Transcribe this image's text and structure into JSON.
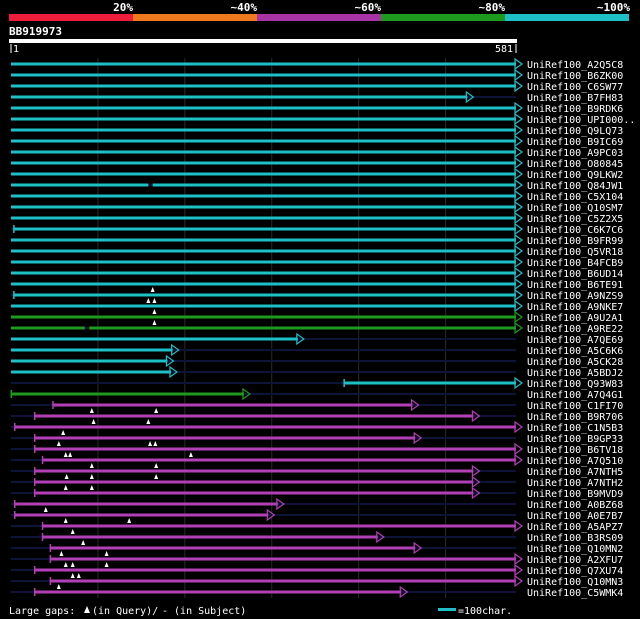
{
  "legend": {
    "ticks": [
      "20%",
      "~40%",
      "~60%",
      "~80%",
      "~100%"
    ],
    "colors": [
      "#ef1d3c",
      "#ef7a1e",
      "#a833a4",
      "#1e9a1e",
      "#1ec0c8"
    ]
  },
  "query": {
    "name": "BB919973",
    "start": "1",
    "end": "581",
    "length": 581
  },
  "colors": {
    "cyan": "#1ec0c8",
    "green": "#1e9a1e",
    "magenta": "#b23fb6",
    "dim": "#0c1438",
    "grid": "#2a2a2a"
  },
  "hits": [
    {
      "label": "UniRef100_A2Q5C8",
      "color": "cyan",
      "segs": [
        [
          0,
          581
        ]
      ],
      "arrow": true,
      "start_tick": false,
      "gaps": []
    },
    {
      "label": "UniRef100_B6ZK00",
      "color": "cyan",
      "segs": [
        [
          0,
          581
        ]
      ],
      "arrow": true,
      "start_tick": false,
      "gaps": []
    },
    {
      "label": "UniRef100_C6SW77",
      "color": "cyan",
      "segs": [
        [
          0,
          581
        ]
      ],
      "arrow": true,
      "start_tick": false,
      "gaps": []
    },
    {
      "label": "UniRef100_B7FH83",
      "color": "cyan",
      "segs": [
        [
          0,
          525
        ]
      ],
      "arrow": true,
      "start_tick": false,
      "gaps": []
    },
    {
      "label": "UniRef100_B9RDK6",
      "color": "cyan",
      "segs": [
        [
          0,
          581
        ]
      ],
      "arrow": true,
      "start_tick": false,
      "gaps": []
    },
    {
      "label": "UniRef100_UPI000..",
      "color": "cyan",
      "segs": [
        [
          0,
          581
        ]
      ],
      "arrow": true,
      "start_tick": false,
      "gaps": []
    },
    {
      "label": "UniRef100_Q9LQ73",
      "color": "cyan",
      "segs": [
        [
          0,
          581
        ]
      ],
      "arrow": true,
      "start_tick": false,
      "gaps": []
    },
    {
      "label": "UniRef100_B9IC69",
      "color": "cyan",
      "segs": [
        [
          0,
          581
        ]
      ],
      "arrow": true,
      "start_tick": false,
      "gaps": []
    },
    {
      "label": "UniRef100_A9PC03",
      "color": "cyan",
      "segs": [
        [
          0,
          581
        ]
      ],
      "arrow": true,
      "start_tick": false,
      "gaps": []
    },
    {
      "label": "UniRef100_O80845",
      "color": "cyan",
      "segs": [
        [
          0,
          581
        ]
      ],
      "arrow": true,
      "start_tick": false,
      "gaps": []
    },
    {
      "label": "UniRef100_Q9LKW2",
      "color": "cyan",
      "segs": [
        [
          0,
          581
        ]
      ],
      "arrow": true,
      "start_tick": false,
      "gaps": []
    },
    {
      "label": "UniRef100_Q84JW1",
      "color": "cyan",
      "segs": [
        [
          0,
          158
        ],
        [
          163,
          581
        ]
      ],
      "arrow": true,
      "start_tick": false,
      "gaps": []
    },
    {
      "label": "UniRef100_C5X104",
      "color": "cyan",
      "segs": [
        [
          0,
          581
        ]
      ],
      "arrow": true,
      "start_tick": false,
      "gaps": []
    },
    {
      "label": "UniRef100_Q10SM7",
      "color": "cyan",
      "segs": [
        [
          0,
          581
        ]
      ],
      "arrow": true,
      "start_tick": false,
      "gaps": []
    },
    {
      "label": "UniRef100_C5Z2X5",
      "color": "cyan",
      "segs": [
        [
          0,
          581
        ]
      ],
      "arrow": true,
      "start_tick": false,
      "gaps": []
    },
    {
      "label": "UniRef100_C6K7C6",
      "color": "cyan",
      "segs": [
        [
          3,
          581
        ]
      ],
      "arrow": true,
      "start_tick": true,
      "gaps": []
    },
    {
      "label": "UniRef100_B9FR99",
      "color": "cyan",
      "segs": [
        [
          0,
          581
        ]
      ],
      "arrow": true,
      "start_tick": false,
      "gaps": []
    },
    {
      "label": "UniRef100_Q5VR18",
      "color": "cyan",
      "segs": [
        [
          0,
          581
        ]
      ],
      "arrow": true,
      "start_tick": false,
      "gaps": []
    },
    {
      "label": "UniRef100_B4FCB9",
      "color": "cyan",
      "segs": [
        [
          0,
          581
        ]
      ],
      "arrow": true,
      "start_tick": false,
      "gaps": []
    },
    {
      "label": "UniRef100_B6UD14",
      "color": "cyan",
      "segs": [
        [
          0,
          581
        ]
      ],
      "arrow": true,
      "start_tick": false,
      "gaps": []
    },
    {
      "label": "UniRef100_B6TE91",
      "color": "cyan",
      "segs": [
        [
          0,
          581
        ]
      ],
      "arrow": true,
      "start_tick": false,
      "gaps": []
    },
    {
      "label": "UniRef100_A9NZS9",
      "color": "cyan",
      "segs": [
        [
          3,
          581
        ]
      ],
      "arrow": true,
      "start_tick": true,
      "gaps": [
        163
      ]
    },
    {
      "label": "UniRef100_A9NKE7",
      "color": "cyan",
      "segs": [
        [
          0,
          581
        ]
      ],
      "arrow": true,
      "start_tick": false,
      "gaps": [
        158,
        165
      ]
    },
    {
      "label": "UniRef100_A9U2A1",
      "color": "green",
      "segs": [
        [
          0,
          581
        ]
      ],
      "arrow": true,
      "start_tick": false,
      "gaps": [
        165
      ]
    },
    {
      "label": "UniRef100_A9RE22",
      "color": "green",
      "segs": [
        [
          0,
          85
        ],
        [
          90,
          581
        ]
      ],
      "arrow": true,
      "start_tick": false,
      "gaps": [
        165
      ]
    },
    {
      "label": "UniRef100_A7QE69",
      "color": "cyan",
      "segs": [
        [
          0,
          330
        ]
      ],
      "arrow": true,
      "start_tick": false,
      "gaps": []
    },
    {
      "label": "UniRef100_A5C6K6",
      "color": "cyan",
      "segs": [
        [
          0,
          186
        ]
      ],
      "arrow": true,
      "start_tick": false,
      "gaps": []
    },
    {
      "label": "UniRef100_A5CK28",
      "color": "cyan",
      "segs": [
        [
          0,
          180
        ]
      ],
      "arrow": true,
      "start_tick": false,
      "gaps": []
    },
    {
      "label": "UniRef100_A5BDJ2",
      "color": "cyan",
      "segs": [
        [
          0,
          184
        ]
      ],
      "arrow": true,
      "start_tick": false,
      "gaps": []
    },
    {
      "label": "UniRef100_Q93W83",
      "color": "cyan",
      "segs": [
        [
          383,
          581
        ]
      ],
      "arrow": true,
      "start_tick": true,
      "gaps": []
    },
    {
      "label": "UniRef100_A7Q4G1",
      "color": "green",
      "segs": [
        [
          0,
          268
        ]
      ],
      "arrow": true,
      "start_tick": true,
      "gaps": []
    },
    {
      "label": "UniRef100_C1FI70",
      "color": "magenta",
      "segs": [
        [
          48,
          462
        ]
      ],
      "arrow": true,
      "start_tick": true,
      "gaps": []
    },
    {
      "label": "UniRef100_B9R706",
      "color": "magenta",
      "segs": [
        [
          27,
          532
        ]
      ],
      "arrow": true,
      "start_tick": true,
      "gaps": [
        93,
        167
      ]
    },
    {
      "label": "UniRef100_C1N5B3",
      "color": "magenta",
      "segs": [
        [
          4,
          581
        ]
      ],
      "arrow": true,
      "start_tick": true,
      "gaps": [
        95,
        158
      ]
    },
    {
      "label": "UniRef100_B9GP33",
      "color": "magenta",
      "segs": [
        [
          27,
          465
        ]
      ],
      "arrow": true,
      "start_tick": true,
      "gaps": [
        60
      ]
    },
    {
      "label": "UniRef100_B6TV18",
      "color": "magenta",
      "segs": [
        [
          27,
          581
        ]
      ],
      "arrow": true,
      "start_tick": true,
      "gaps": [
        55,
        160,
        166
      ]
    },
    {
      "label": "UniRef100_A7Q510",
      "color": "magenta",
      "segs": [
        [
          36,
          581
        ]
      ],
      "arrow": true,
      "start_tick": true,
      "gaps": [
        63,
        68,
        207
      ]
    },
    {
      "label": "UniRef100_A7NTH5",
      "color": "magenta",
      "segs": [
        [
          27,
          532
        ]
      ],
      "arrow": true,
      "start_tick": true,
      "gaps": [
        93,
        167
      ]
    },
    {
      "label": "UniRef100_A7NTH2",
      "color": "magenta",
      "segs": [
        [
          27,
          532
        ]
      ],
      "arrow": true,
      "start_tick": true,
      "gaps": [
        64,
        93,
        167
      ]
    },
    {
      "label": "UniRef100_B9MVD9",
      "color": "magenta",
      "segs": [
        [
          27,
          532
        ]
      ],
      "arrow": true,
      "start_tick": true,
      "gaps": [
        63,
        93
      ]
    },
    {
      "label": "UniRef100_A0BZ68",
      "color": "magenta",
      "segs": [
        [
          4,
          307
        ]
      ],
      "arrow": true,
      "start_tick": true,
      "gaps": []
    },
    {
      "label": "UniRef100_A0E7B7",
      "color": "magenta",
      "segs": [
        [
          4,
          296
        ]
      ],
      "arrow": true,
      "start_tick": true,
      "gaps": [
        40
      ]
    },
    {
      "label": "UniRef100_A5APZ7",
      "color": "magenta",
      "segs": [
        [
          36,
          581
        ]
      ],
      "arrow": true,
      "start_tick": true,
      "gaps": [
        63,
        136
      ]
    },
    {
      "label": "UniRef100_B3RS09",
      "color": "magenta",
      "segs": [
        [
          36,
          422
        ]
      ],
      "arrow": true,
      "start_tick": true,
      "gaps": [
        71
      ]
    },
    {
      "label": "UniRef100_Q10MN2",
      "color": "magenta",
      "segs": [
        [
          45,
          465
        ]
      ],
      "arrow": true,
      "start_tick": true,
      "gaps": [
        83
      ]
    },
    {
      "label": "UniRef100_A2XFU7",
      "color": "magenta",
      "segs": [
        [
          45,
          581
        ]
      ],
      "arrow": true,
      "start_tick": true,
      "gaps": [
        58,
        110
      ]
    },
    {
      "label": "UniRef100_Q7XU74",
      "color": "magenta",
      "segs": [
        [
          27,
          581
        ]
      ],
      "arrow": true,
      "start_tick": true,
      "gaps": [
        63,
        71,
        110
      ]
    },
    {
      "label": "UniRef100_Q10MN3",
      "color": "magenta",
      "segs": [
        [
          45,
          581
        ]
      ],
      "arrow": true,
      "start_tick": true,
      "gaps": [
        71,
        78
      ]
    },
    {
      "label": "UniRef100_C5WMK4",
      "color": "magenta",
      "segs": [
        [
          27,
          449
        ]
      ],
      "arrow": true,
      "start_tick": true,
      "gaps": [
        55
      ]
    }
  ],
  "footer": {
    "gaps_text": "Large gaps:",
    "query_text": "(in Query)/",
    "dash_text": "- (in Subject)",
    "scale_text": "=100char."
  }
}
